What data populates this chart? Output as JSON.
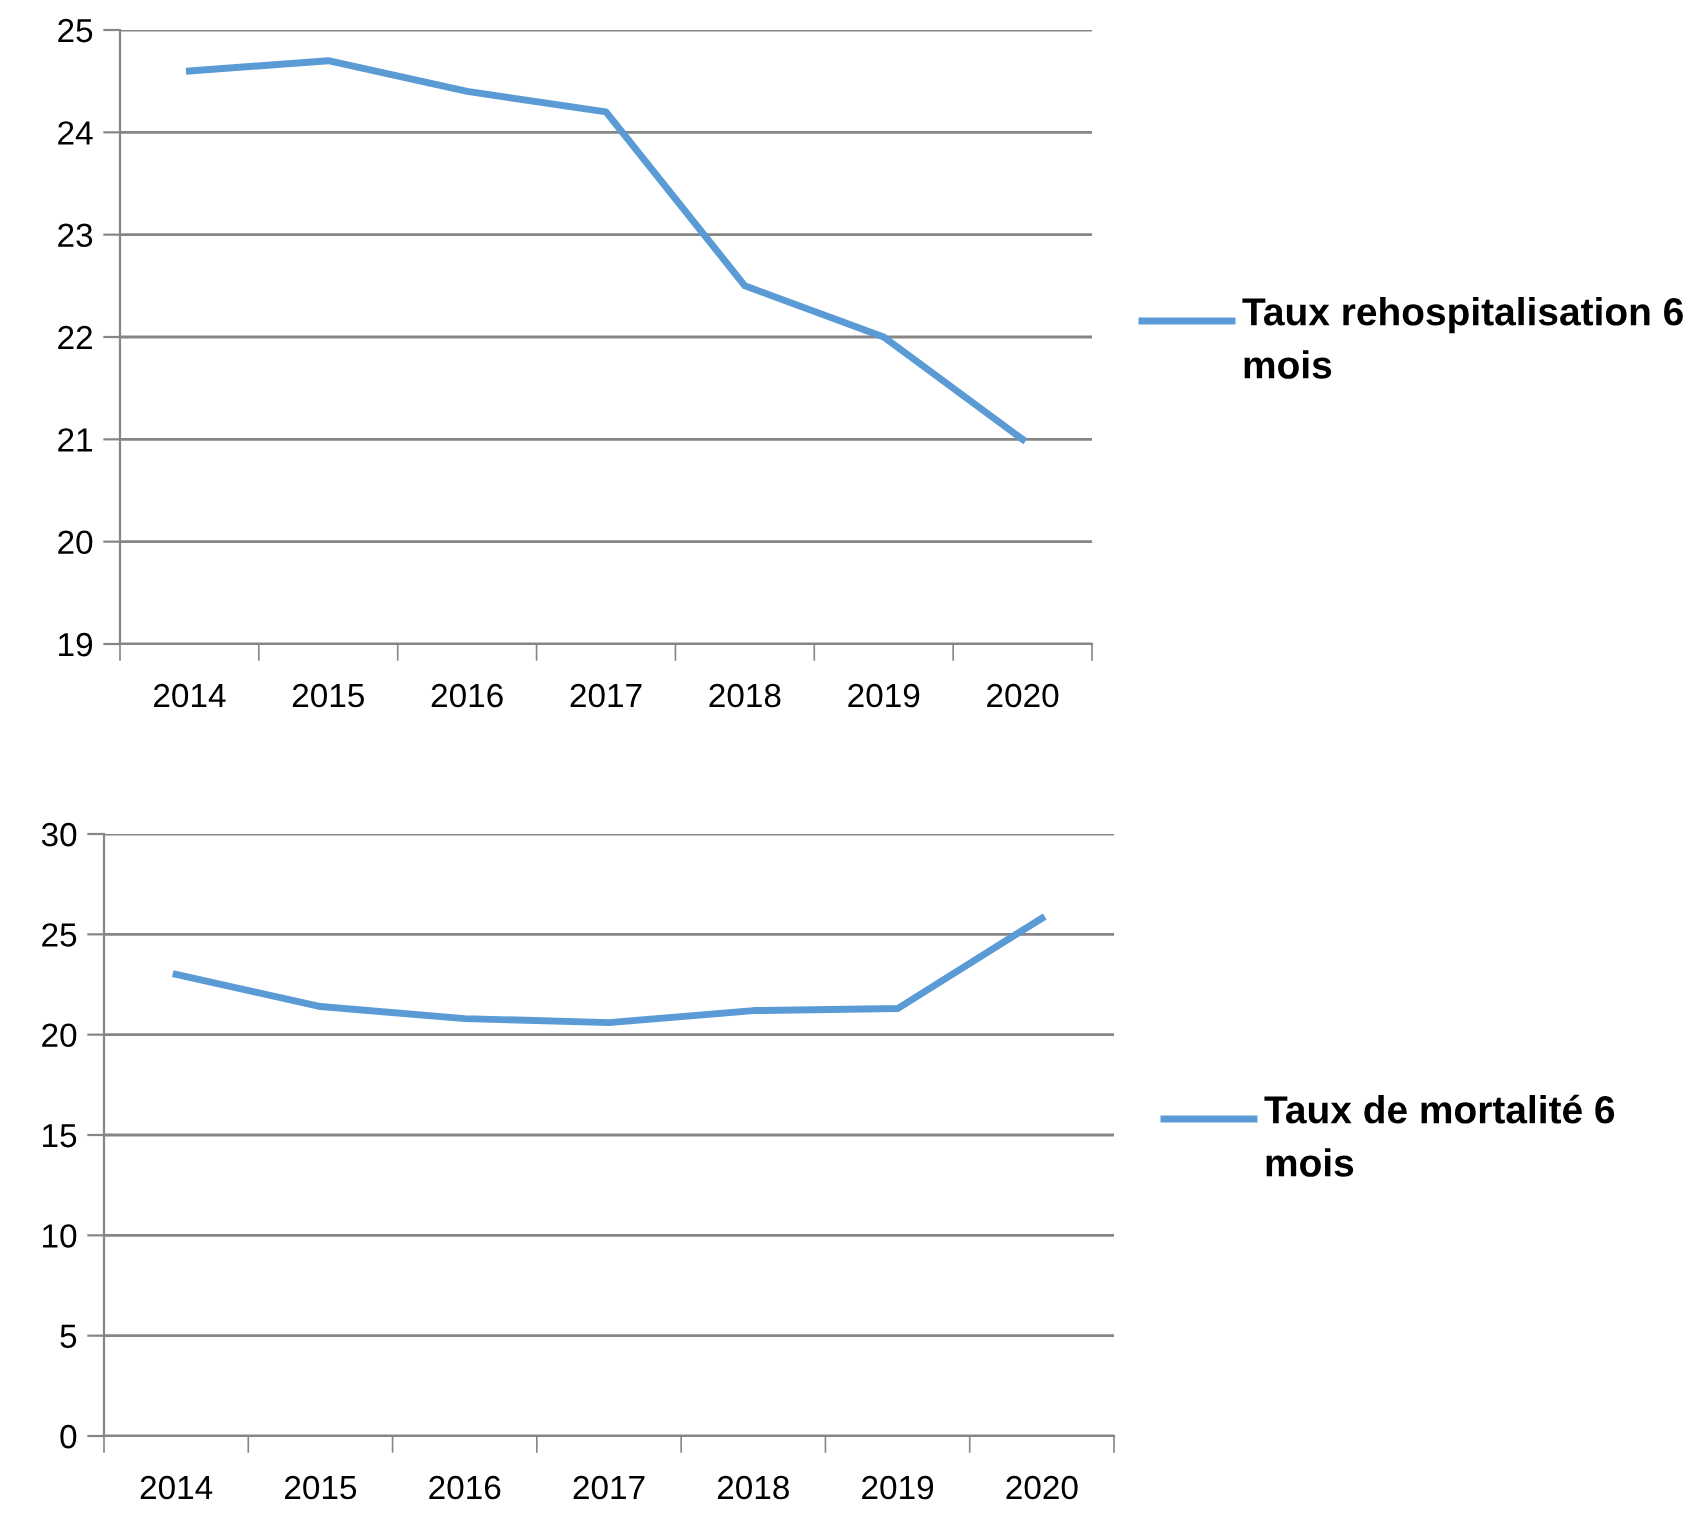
{
  "chart_data": [
    {
      "type": "line",
      "categories": [
        "2014",
        "2015",
        "2016",
        "2017",
        "2018",
        "2019",
        "2020"
      ],
      "series": [
        {
          "name": "Taux rehospitalisation 6 mois",
          "color": "#5b9bd5",
          "values": [
            24.6,
            24.7,
            24.4,
            24.2,
            22.5,
            22.0,
            21.0
          ]
        }
      ],
      "ylim": [
        19,
        25
      ],
      "yticks": [
        19,
        20,
        21,
        22,
        23,
        24,
        25
      ],
      "grid": "y",
      "legend": "right",
      "marker": "none",
      "line_style": "solid"
    },
    {
      "type": "line",
      "categories": [
        "2014",
        "2015",
        "2016",
        "2017",
        "2018",
        "2019",
        "2020"
      ],
      "series": [
        {
          "name": "Taux de mortalité 6 mois",
          "color": "#5b9bd5",
          "values": [
            23.0,
            21.4,
            20.8,
            20.6,
            21.2,
            21.3,
            25.8
          ]
        }
      ],
      "ylim": [
        0,
        30
      ],
      "yticks": [
        0,
        5,
        10,
        15,
        20,
        25,
        30
      ],
      "grid": "y",
      "legend": "right",
      "marker": "none",
      "line_style": "solid"
    }
  ]
}
